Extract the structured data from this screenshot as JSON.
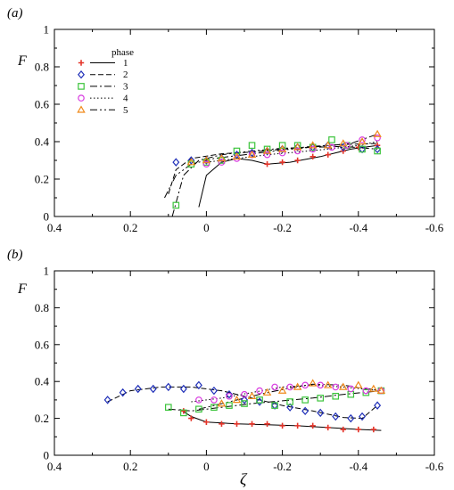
{
  "figure": {
    "legend_title": "phase",
    "x_label": "ζ",
    "y_label": "F",
    "panels": [
      "(a)",
      "(b)"
    ]
  },
  "colors": {
    "1": "#e4352a",
    "2": "#1f2fb8",
    "3": "#3cc43c",
    "4": "#d83be0",
    "5": "#f08a1c"
  },
  "chart_data": [
    {
      "panel": "(a)",
      "type": "scatter",
      "xlim": [
        0.4,
        -0.6
      ],
      "ylim": [
        0,
        1
      ],
      "xticks": [
        "0.4",
        "0.2",
        "0",
        "-0.2",
        "-0.4",
        "-0.6"
      ],
      "yticks": [
        "0",
        "0.2",
        "0.4",
        "0.6",
        "0.8",
        "1"
      ],
      "legend": [
        "1",
        "2",
        "3",
        "4",
        "5"
      ],
      "series": [
        {
          "name": "1",
          "marker": "plus",
          "linestyle": "solid",
          "points": [
            [
              -0.16,
              0.28
            ],
            [
              -0.2,
              0.29
            ],
            [
              -0.24,
              0.3
            ],
            [
              -0.28,
              0.32
            ],
            [
              -0.32,
              0.33
            ],
            [
              -0.36,
              0.35
            ],
            [
              -0.4,
              0.37
            ],
            [
              -0.45,
              0.38
            ]
          ],
          "curve": [
            [
              0.02,
              0.05
            ],
            [
              0.0,
              0.22
            ],
            [
              -0.04,
              0.29
            ],
            [
              -0.08,
              0.31
            ],
            [
              -0.12,
              0.3
            ],
            [
              -0.16,
              0.28
            ],
            [
              -0.22,
              0.29
            ],
            [
              -0.3,
              0.32
            ],
            [
              -0.38,
              0.36
            ],
            [
              -0.45,
              0.38
            ]
          ]
        },
        {
          "name": "2",
          "marker": "diamond",
          "linestyle": "dashed",
          "points": [
            [
              0.08,
              0.29
            ],
            [
              0.04,
              0.3
            ],
            [
              0.0,
              0.3
            ],
            [
              -0.04,
              0.31
            ],
            [
              -0.08,
              0.33
            ],
            [
              -0.12,
              0.34
            ],
            [
              -0.16,
              0.35
            ],
            [
              -0.2,
              0.36
            ],
            [
              -0.24,
              0.37
            ],
            [
              -0.28,
              0.37
            ],
            [
              -0.32,
              0.38
            ],
            [
              -0.36,
              0.37
            ],
            [
              -0.41,
              0.36
            ],
            [
              -0.45,
              0.36
            ]
          ],
          "curve": [
            [
              0.1,
              0.12
            ],
            [
              0.08,
              0.25
            ],
            [
              0.04,
              0.31
            ],
            [
              -0.04,
              0.335
            ],
            [
              -0.12,
              0.345
            ],
            [
              -0.2,
              0.36
            ],
            [
              -0.28,
              0.375
            ],
            [
              -0.36,
              0.385
            ],
            [
              -0.45,
              0.39
            ]
          ]
        },
        {
          "name": "3",
          "marker": "square",
          "linestyle": "dashdot",
          "points": [
            [
              0.08,
              0.06
            ],
            [
              0.04,
              0.28
            ],
            [
              0.0,
              0.29
            ],
            [
              -0.04,
              0.3
            ],
            [
              -0.08,
              0.35
            ],
            [
              -0.12,
              0.38
            ],
            [
              -0.16,
              0.36
            ],
            [
              -0.2,
              0.38
            ],
            [
              -0.24,
              0.38
            ],
            [
              -0.28,
              0.37
            ],
            [
              -0.33,
              0.41
            ],
            [
              -0.37,
              0.38
            ],
            [
              -0.41,
              0.36
            ],
            [
              -0.45,
              0.35
            ]
          ],
          "curve": [
            [
              0.09,
              0.0
            ],
            [
              0.06,
              0.22
            ],
            [
              0.02,
              0.3
            ],
            [
              -0.04,
              0.33
            ],
            [
              -0.12,
              0.35
            ],
            [
              -0.2,
              0.365
            ],
            [
              -0.28,
              0.37
            ],
            [
              -0.36,
              0.375
            ],
            [
              -0.45,
              0.36
            ]
          ]
        },
        {
          "name": "4",
          "marker": "circle",
          "linestyle": "dotted",
          "points": [
            [
              0.0,
              0.28
            ],
            [
              -0.04,
              0.29
            ],
            [
              -0.08,
              0.31
            ],
            [
              -0.12,
              0.33
            ],
            [
              -0.16,
              0.33
            ],
            [
              -0.2,
              0.34
            ],
            [
              -0.24,
              0.35
            ],
            [
              -0.28,
              0.36
            ],
            [
              -0.33,
              0.37
            ],
            [
              -0.37,
              0.38
            ],
            [
              -0.41,
              0.41
            ],
            [
              -0.45,
              0.42
            ]
          ],
          "curve": [
            [
              0.0,
              0.29
            ],
            [
              -0.08,
              0.31
            ],
            [
              -0.16,
              0.33
            ],
            [
              -0.24,
              0.345
            ],
            [
              -0.32,
              0.36
            ],
            [
              -0.4,
              0.38
            ],
            [
              -0.45,
              0.4
            ]
          ]
        },
        {
          "name": "5",
          "marker": "triangle",
          "linestyle": "dashdotdot",
          "points": [
            [
              0.04,
              0.29
            ],
            [
              0.0,
              0.3
            ],
            [
              -0.04,
              0.31
            ],
            [
              -0.08,
              0.32
            ],
            [
              -0.12,
              0.33
            ],
            [
              -0.16,
              0.35
            ],
            [
              -0.2,
              0.36
            ],
            [
              -0.24,
              0.37
            ],
            [
              -0.28,
              0.38
            ],
            [
              -0.32,
              0.38
            ],
            [
              -0.36,
              0.39
            ],
            [
              -0.41,
              0.4
            ],
            [
              -0.45,
              0.44
            ]
          ],
          "curve": [
            [
              0.11,
              0.1
            ],
            [
              0.08,
              0.22
            ],
            [
              0.04,
              0.28
            ],
            [
              -0.02,
              0.31
            ],
            [
              -0.1,
              0.33
            ],
            [
              -0.2,
              0.355
            ],
            [
              -0.3,
              0.375
            ],
            [
              -0.38,
              0.39
            ],
            [
              -0.45,
              0.44
            ]
          ]
        }
      ]
    },
    {
      "panel": "(b)",
      "type": "scatter",
      "xlim": [
        0.4,
        -0.6
      ],
      "ylim": [
        0,
        1
      ],
      "xticks": [
        "0.4",
        "0.2",
        "0",
        "-0.2",
        "-0.4",
        "-0.6"
      ],
      "yticks": [
        "0",
        "0.2",
        "0.4",
        "0.6",
        "0.8",
        "1"
      ],
      "series": [
        {
          "name": "1",
          "marker": "plus",
          "linestyle": "solid",
          "points": [
            [
              0.06,
              0.24
            ],
            [
              0.04,
              0.2
            ],
            [
              0.0,
              0.18
            ],
            [
              -0.04,
              0.17
            ],
            [
              -0.08,
              0.17
            ],
            [
              -0.12,
              0.17
            ],
            [
              -0.16,
              0.17
            ],
            [
              -0.2,
              0.16
            ],
            [
              -0.24,
              0.16
            ],
            [
              -0.28,
              0.16
            ],
            [
              -0.32,
              0.15
            ],
            [
              -0.36,
              0.14
            ],
            [
              -0.4,
              0.14
            ],
            [
              -0.44,
              0.14
            ]
          ],
          "curve": [
            [
              0.07,
              0.25
            ],
            [
              0.04,
              0.21
            ],
            [
              0.0,
              0.18
            ],
            [
              -0.08,
              0.17
            ],
            [
              -0.16,
              0.165
            ],
            [
              -0.24,
              0.16
            ],
            [
              -0.32,
              0.15
            ],
            [
              -0.4,
              0.14
            ],
            [
              -0.46,
              0.135
            ]
          ]
        },
        {
          "name": "2",
          "marker": "diamond",
          "linestyle": "dashed",
          "points": [
            [
              0.26,
              0.3
            ],
            [
              0.22,
              0.34
            ],
            [
              0.18,
              0.36
            ],
            [
              0.14,
              0.36
            ],
            [
              0.1,
              0.37
            ],
            [
              0.06,
              0.36
            ],
            [
              0.02,
              0.38
            ],
            [
              -0.02,
              0.35
            ],
            [
              -0.06,
              0.33
            ],
            [
              -0.1,
              0.3
            ],
            [
              -0.14,
              0.29
            ],
            [
              -0.18,
              0.27
            ],
            [
              -0.22,
              0.26
            ],
            [
              -0.26,
              0.24
            ],
            [
              -0.3,
              0.23
            ],
            [
              -0.34,
              0.21
            ],
            [
              -0.38,
              0.2
            ],
            [
              -0.41,
              0.21
            ],
            [
              -0.45,
              0.27
            ]
          ],
          "curve": [
            [
              0.26,
              0.29
            ],
            [
              0.2,
              0.35
            ],
            [
              0.12,
              0.37
            ],
            [
              0.04,
              0.37
            ],
            [
              -0.04,
              0.35
            ],
            [
              -0.12,
              0.31
            ],
            [
              -0.2,
              0.27
            ],
            [
              -0.28,
              0.24
            ],
            [
              -0.36,
              0.205
            ],
            [
              -0.41,
              0.2
            ],
            [
              -0.45,
              0.27
            ]
          ]
        },
        {
          "name": "3",
          "marker": "square",
          "linestyle": "dashdot",
          "points": [
            [
              0.1,
              0.26
            ],
            [
              0.06,
              0.23
            ],
            [
              0.02,
              0.25
            ],
            [
              -0.02,
              0.26
            ],
            [
              -0.06,
              0.27
            ],
            [
              -0.1,
              0.28
            ],
            [
              -0.14,
              0.3
            ],
            [
              -0.18,
              0.27
            ],
            [
              -0.22,
              0.29
            ],
            [
              -0.26,
              0.3
            ],
            [
              -0.3,
              0.31
            ],
            [
              -0.34,
              0.32
            ],
            [
              -0.38,
              0.33
            ],
            [
              -0.42,
              0.34
            ],
            [
              -0.46,
              0.35
            ]
          ],
          "curve": [
            [
              0.1,
              0.25
            ],
            [
              0.04,
              0.24
            ],
            [
              -0.04,
              0.26
            ],
            [
              -0.12,
              0.28
            ],
            [
              -0.2,
              0.295
            ],
            [
              -0.28,
              0.31
            ],
            [
              -0.36,
              0.33
            ],
            [
              -0.46,
              0.35
            ]
          ]
        },
        {
          "name": "4",
          "marker": "circle",
          "linestyle": "dotted",
          "points": [
            [
              0.02,
              0.3
            ],
            [
              -0.02,
              0.3
            ],
            [
              -0.06,
              0.32
            ],
            [
              -0.1,
              0.33
            ],
            [
              -0.14,
              0.35
            ],
            [
              -0.18,
              0.37
            ],
            [
              -0.22,
              0.37
            ],
            [
              -0.26,
              0.38
            ],
            [
              -0.3,
              0.38
            ],
            [
              -0.34,
              0.37
            ],
            [
              -0.38,
              0.36
            ],
            [
              -0.42,
              0.35
            ],
            [
              -0.46,
              0.35
            ]
          ],
          "curve": [
            [
              0.04,
              0.29
            ],
            [
              -0.04,
              0.31
            ],
            [
              -0.12,
              0.34
            ],
            [
              -0.2,
              0.37
            ],
            [
              -0.28,
              0.38
            ],
            [
              -0.36,
              0.37
            ],
            [
              -0.46,
              0.35
            ]
          ]
        },
        {
          "name": "5",
          "marker": "triangle",
          "linestyle": "dashdotdot",
          "points": [
            [
              -0.04,
              0.28
            ],
            [
              -0.08,
              0.3
            ],
            [
              -0.12,
              0.32
            ],
            [
              -0.16,
              0.34
            ],
            [
              -0.2,
              0.35
            ],
            [
              -0.24,
              0.37
            ],
            [
              -0.28,
              0.39
            ],
            [
              -0.32,
              0.38
            ],
            [
              -0.36,
              0.37
            ],
            [
              -0.4,
              0.38
            ],
            [
              -0.44,
              0.36
            ],
            [
              -0.46,
              0.35
            ]
          ],
          "curve": [
            [
              0.02,
              0.25
            ],
            [
              -0.06,
              0.29
            ],
            [
              -0.14,
              0.33
            ],
            [
              -0.22,
              0.365
            ],
            [
              -0.28,
              0.385
            ],
            [
              -0.36,
              0.38
            ],
            [
              -0.46,
              0.35
            ]
          ]
        }
      ]
    }
  ]
}
